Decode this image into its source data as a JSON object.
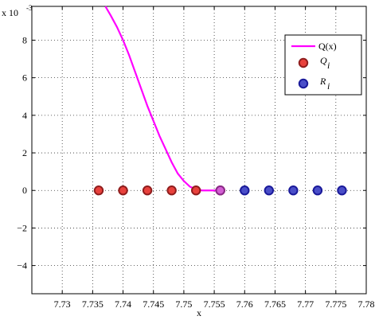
{
  "chart_data": {
    "type": "line",
    "xlabel": "x",
    "ylabel": "",
    "y_multiplier_label": "x 10",
    "y_multiplier_exponent": "-3",
    "xlim": [
      7.725,
      7.78
    ],
    "ylim": [
      -0.0055,
      0.0098
    ],
    "x_ticks": [
      7.73,
      7.735,
      7.74,
      7.745,
      7.75,
      7.755,
      7.76,
      7.765,
      7.77,
      7.775,
      7.78
    ],
    "x_tick_labels": [
      "7.73",
      "7.735",
      "7.74",
      "7.745",
      "7.75",
      "7.755",
      "7.76",
      "7.765",
      "7.77",
      "7.775",
      "7.78"
    ],
    "y_ticks": [
      -0.004,
      -0.002,
      0,
      0.002,
      0.004,
      0.006,
      0.008
    ],
    "y_tick_labels": [
      "−4",
      "−2",
      "0",
      "2",
      "4",
      "6",
      "8"
    ],
    "grid": true,
    "legend_position": "top-right",
    "series": [
      {
        "name": "Q(x)",
        "kind": "line",
        "color": "#ff00ff",
        "x": [
          7.7371,
          7.738,
          7.739,
          7.74,
          7.741,
          7.742,
          7.743,
          7.744,
          7.745,
          7.746,
          7.747,
          7.748,
          7.749,
          7.75,
          7.751,
          7.752,
          7.753,
          7.754,
          7.755,
          7.756
        ],
        "y": [
          0.0098,
          0.0093,
          0.0087,
          0.008,
          0.0072,
          0.0063,
          0.0054,
          0.0045,
          0.0037,
          0.0029,
          0.0022,
          0.0015,
          0.0009,
          0.0005,
          0.0002,
          5e-05,
          0.0,
          0.0,
          0.0,
          0.0
        ]
      },
      {
        "name": "Q",
        "subscript": "i",
        "kind": "scatter",
        "fill": "#e8413c",
        "stroke": "#8f1d1d",
        "x": [
          7.736,
          7.74,
          7.744,
          7.748,
          7.752,
          7.756
        ],
        "y": [
          0,
          0,
          0,
          0,
          0,
          0
        ]
      },
      {
        "name": "R",
        "subscript": "i",
        "kind": "scatter",
        "fill": "#4a4ec8",
        "stroke": "#1a1a9a",
        "x": [
          7.76,
          7.764,
          7.768,
          7.772,
          7.776
        ],
        "y": [
          0,
          0,
          0,
          0,
          0
        ]
      }
    ],
    "overlay_point": {
      "x": 7.756,
      "y": 0,
      "fill": "#d35fd3",
      "stroke": "#8a2a8a"
    }
  }
}
